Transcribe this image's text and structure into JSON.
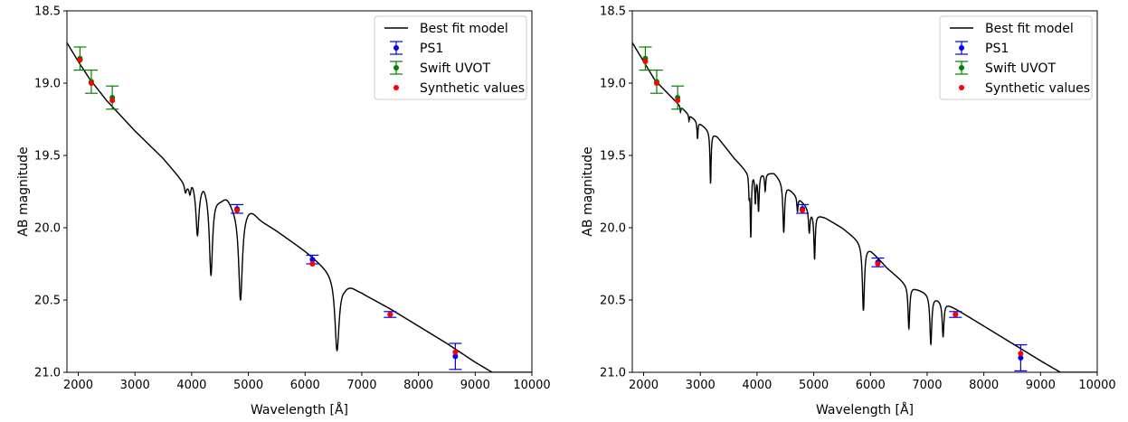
{
  "chart_data": [
    {
      "type": "line",
      "xlabel": "Wavelength [Å]",
      "ylabel": "AB magnitude",
      "xlim": [
        1800,
        10000
      ],
      "ylim": [
        21.0,
        18.5
      ],
      "y_inverted": true,
      "xticks": [
        2000,
        3000,
        4000,
        5000,
        6000,
        7000,
        8000,
        9000,
        10000
      ],
      "xtick_labels": [
        "2000",
        "3000",
        "4000",
        "5000",
        "6000",
        "7000",
        "8000",
        "9000",
        "10000"
      ],
      "yticks": [
        18.5,
        19.0,
        19.5,
        20.0,
        20.5,
        21.0
      ],
      "ytick_labels": [
        "18.5",
        "19.0",
        "19.5",
        "20.0",
        "20.5",
        "21.0"
      ],
      "legend_position": "top-right",
      "legend": [
        "Best fit model",
        "PS1",
        "Swift UVOT",
        "Synthetic values"
      ],
      "model": {
        "name": "Best fit model",
        "color": "#000000",
        "continuum": [
          [
            1800,
            18.72
          ],
          [
            2000,
            18.85
          ],
          [
            2200,
            18.97
          ],
          [
            2500,
            19.12
          ],
          [
            3000,
            19.33
          ],
          [
            3500,
            19.52
          ],
          [
            3900,
            19.7
          ],
          [
            4300,
            19.75
          ],
          [
            4500,
            19.8
          ],
          [
            4800,
            19.86
          ],
          [
            5000,
            19.89
          ],
          [
            5500,
            20.02
          ],
          [
            6000,
            20.16
          ],
          [
            6500,
            20.32
          ],
          [
            6700,
            20.42
          ],
          [
            7000,
            20.45
          ],
          [
            7500,
            20.56
          ],
          [
            8000,
            20.68
          ],
          [
            8500,
            20.8
          ],
          [
            9000,
            20.93
          ],
          [
            9300,
            21.0
          ]
        ],
        "lines": [
          {
            "center": 3890,
            "depth": 0.05,
            "width": 18
          },
          {
            "center": 3970,
            "depth": 0.08,
            "width": 22
          },
          {
            "center": 4102,
            "depth": 0.32,
            "width": 30
          },
          {
            "center": 4340,
            "depth": 0.56,
            "width": 34
          },
          {
            "center": 4861,
            "depth": 0.63,
            "width": 40
          },
          {
            "center": 6563,
            "depth": 0.5,
            "width": 45
          }
        ],
        "bumps": [
          {
            "center": 4000,
            "height": 0.05,
            "width": 60
          },
          {
            "center": 4210,
            "height": 0.05,
            "width": 70
          },
          {
            "center": 4620,
            "height": 0.04,
            "width": 90
          },
          {
            "center": 5050,
            "height": 0.03,
            "width": 120
          },
          {
            "center": 6780,
            "height": 0.03,
            "width": 150
          }
        ]
      },
      "series": [
        {
          "name": "PS1",
          "color": "#0000ee",
          "points": [
            {
              "x": 4800,
              "y": 19.87,
              "yerr": 0.03
            },
            {
              "x": 6130,
              "y": 20.22,
              "yerr": 0.03
            },
            {
              "x": 7500,
              "y": 20.6,
              "yerr": 0.02
            },
            {
              "x": 8650,
              "y": 20.89,
              "yerr": 0.09
            }
          ]
        },
        {
          "name": "Swift UVOT",
          "color": "#008000",
          "points": [
            {
              "x": 2030,
              "y": 18.83,
              "yerr": 0.08
            },
            {
              "x": 2230,
              "y": 18.99,
              "yerr": 0.08
            },
            {
              "x": 2600,
              "y": 19.1,
              "yerr": 0.08
            }
          ]
        },
        {
          "name": "Synthetic values",
          "color": "#ff0000",
          "points": [
            {
              "x": 2030,
              "y": 18.84
            },
            {
              "x": 2230,
              "y": 19.0
            },
            {
              "x": 2600,
              "y": 19.12
            },
            {
              "x": 4800,
              "y": 19.88
            },
            {
              "x": 6130,
              "y": 20.25
            },
            {
              "x": 7500,
              "y": 20.6
            },
            {
              "x": 8650,
              "y": 20.86
            }
          ]
        }
      ]
    },
    {
      "type": "line",
      "xlabel": "Wavelength [Å]",
      "ylabel": "AB magnitude",
      "xlim": [
        1800,
        10000
      ],
      "ylim": [
        21.0,
        18.5
      ],
      "y_inverted": true,
      "xticks": [
        2000,
        3000,
        4000,
        5000,
        6000,
        7000,
        8000,
        9000,
        10000
      ],
      "xtick_labels": [
        "2000",
        "3000",
        "4000",
        "5000",
        "6000",
        "7000",
        "8000",
        "9000",
        "10000"
      ],
      "yticks": [
        18.5,
        19.0,
        19.5,
        20.0,
        20.5,
        21.0
      ],
      "ytick_labels": [
        "18.5",
        "19.0",
        "19.5",
        "20.0",
        "20.5",
        "21.0"
      ],
      "legend_position": "top-right",
      "legend": [
        "Best fit model",
        "PS1",
        "Swift UVOT",
        "Synthetic values"
      ],
      "model": {
        "name": "Best fit model",
        "color": "#000000",
        "continuum": [
          [
            1800,
            18.72
          ],
          [
            2000,
            18.85
          ],
          [
            2200,
            18.98
          ],
          [
            2500,
            19.1
          ],
          [
            2800,
            19.22
          ],
          [
            3000,
            19.28
          ],
          [
            3300,
            19.37
          ],
          [
            3600,
            19.52
          ],
          [
            3800,
            19.6
          ],
          [
            4100,
            19.62
          ],
          [
            4300,
            19.62
          ],
          [
            4500,
            19.7
          ],
          [
            4800,
            19.82
          ],
          [
            5000,
            19.9
          ],
          [
            5200,
            19.93
          ],
          [
            5500,
            20.0
          ],
          [
            6000,
            20.15
          ],
          [
            6300,
            20.28
          ],
          [
            6600,
            20.38
          ],
          [
            6800,
            20.42
          ],
          [
            7000,
            20.45
          ],
          [
            7500,
            20.56
          ],
          [
            8000,
            20.68
          ],
          [
            8500,
            20.8
          ],
          [
            9000,
            20.92
          ],
          [
            9350,
            21.0
          ]
        ],
        "lines": [
          {
            "center": 2650,
            "depth": 0.04,
            "width": 8
          },
          {
            "center": 2800,
            "depth": 0.04,
            "width": 8
          },
          {
            "center": 2950,
            "depth": 0.12,
            "width": 10
          },
          {
            "center": 3180,
            "depth": 0.36,
            "width": 12
          },
          {
            "center": 3860,
            "depth": 0.14,
            "width": 10
          },
          {
            "center": 3890,
            "depth": 0.44,
            "width": 12
          },
          {
            "center": 3970,
            "depth": 0.2,
            "width": 12
          },
          {
            "center": 4026,
            "depth": 0.26,
            "width": 14
          },
          {
            "center": 4144,
            "depth": 0.12,
            "width": 12
          },
          {
            "center": 4471,
            "depth": 0.34,
            "width": 18
          },
          {
            "center": 4713,
            "depth": 0.1,
            "width": 12
          },
          {
            "center": 4921,
            "depth": 0.16,
            "width": 16
          },
          {
            "center": 5015,
            "depth": 0.31,
            "width": 14
          },
          {
            "center": 5876,
            "depth": 0.46,
            "width": 22
          },
          {
            "center": 6678,
            "depth": 0.3,
            "width": 18
          },
          {
            "center": 7065,
            "depth": 0.34,
            "width": 20
          },
          {
            "center": 7281,
            "depth": 0.24,
            "width": 18
          }
        ],
        "bumps": []
      },
      "series": [
        {
          "name": "PS1",
          "color": "#0000ee",
          "points": [
            {
              "x": 4800,
              "y": 19.87,
              "yerr": 0.03
            },
            {
              "x": 6130,
              "y": 20.24,
              "yerr": 0.03
            },
            {
              "x": 7500,
              "y": 20.6,
              "yerr": 0.02
            },
            {
              "x": 8650,
              "y": 20.9,
              "yerr": 0.09
            }
          ]
        },
        {
          "name": "Swift UVOT",
          "color": "#008000",
          "points": [
            {
              "x": 2030,
              "y": 18.83,
              "yerr": 0.08
            },
            {
              "x": 2230,
              "y": 18.99,
              "yerr": 0.08
            },
            {
              "x": 2600,
              "y": 19.1,
              "yerr": 0.08
            }
          ]
        },
        {
          "name": "Synthetic values",
          "color": "#ff0000",
          "points": [
            {
              "x": 2030,
              "y": 18.85
            },
            {
              "x": 2230,
              "y": 19.0
            },
            {
              "x": 2600,
              "y": 19.12
            },
            {
              "x": 4800,
              "y": 19.88
            },
            {
              "x": 6130,
              "y": 20.25
            },
            {
              "x": 7500,
              "y": 20.6
            },
            {
              "x": 8650,
              "y": 20.87
            }
          ]
        }
      ]
    }
  ]
}
